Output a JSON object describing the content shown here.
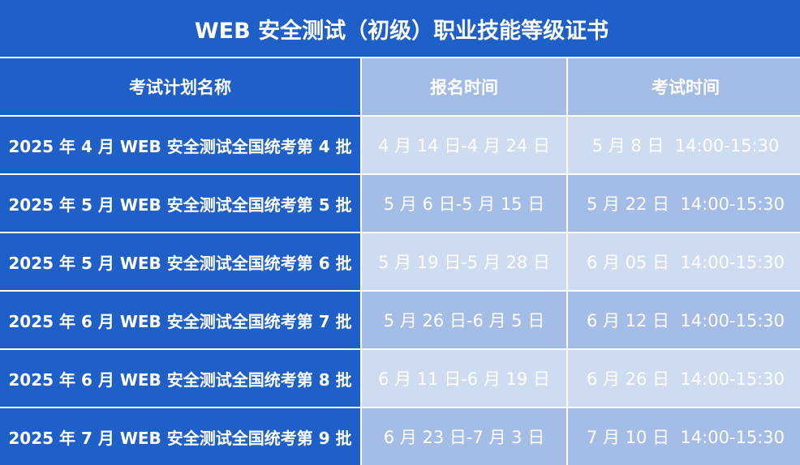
{
  "title": "WEB 安全测试（初级）职业技能等级证书",
  "colors": {
    "primary": "#1f5fc8",
    "header_light": "#a3bce6",
    "row_light": "#cddcf1",
    "row_mid": "#a4bde6",
    "text": "#ffffff"
  },
  "columns": [
    "考试计划名称",
    "报名时间",
    "考试时间"
  ],
  "rows": [
    {
      "name": "2025 年 4 月 WEB 安全测试全国统考第 4 批",
      "registration": "4 月 14 日-4 月 24 日",
      "exam": "5 月 8 日  14:00-15:30"
    },
    {
      "name": "2025 年 5 月 WEB 安全测试全国统考第 5 批",
      "registration": "5 月 6 日-5 月 15 日",
      "exam": "5 月 22 日  14:00-15:30"
    },
    {
      "name": "2025 年 5 月 WEB 安全测试全国统考第 6 批",
      "registration": "5 月 19 日-5 月 28 日",
      "exam": "6 月 05 日  14:00-15:30"
    },
    {
      "name": "2025 年 6 月 WEB 安全测试全国统考第 7 批",
      "registration": "5 月 26 日-6 月 5 日",
      "exam": "6 月 12 日  14:00-15:30"
    },
    {
      "name": "2025 年 6 月 WEB 安全测试全国统考第 8 批",
      "registration": "6 月 11 日-6 月 19 日",
      "exam": "6 月 26 日  14:00-15:30"
    },
    {
      "name": "2025 年 7 月 WEB 安全测试全国统考第 9 批",
      "registration": "6 月 23 日-7 月 3 日",
      "exam": "7 月 10 日  14:00-15:30"
    }
  ]
}
